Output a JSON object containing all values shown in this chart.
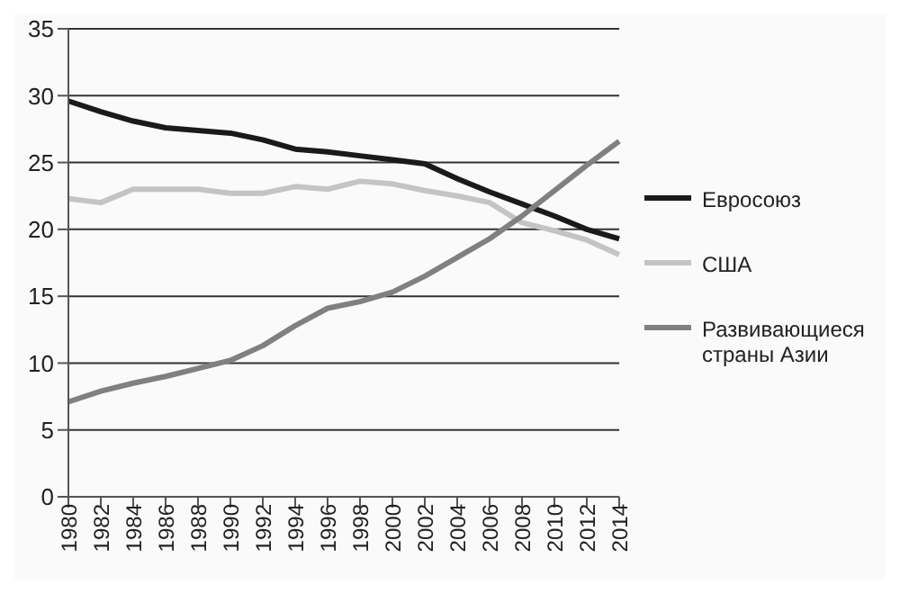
{
  "chart_data": {
    "type": "line",
    "categories": [
      "1980",
      "1982",
      "1984",
      "1986",
      "1988",
      "1990",
      "1992",
      "1994",
      "1996",
      "1998",
      "2000",
      "2002",
      "2004",
      "2006",
      "2008",
      "2010",
      "2012",
      "2014"
    ],
    "series": [
      {
        "name": "Евросоюз",
        "color": "#1a1a1a",
        "values": [
          29.6,
          28.8,
          28.1,
          27.6,
          27.4,
          27.2,
          26.7,
          26.0,
          25.8,
          25.5,
          25.2,
          24.9,
          23.8,
          22.8,
          21.9,
          21.0,
          20.0,
          19.3
        ]
      },
      {
        "name": "США",
        "color": "#c4c4c4",
        "values": [
          22.3,
          22.0,
          23.0,
          23.0,
          23.0,
          22.7,
          22.7,
          23.2,
          23.0,
          23.6,
          23.4,
          22.9,
          22.5,
          22.0,
          20.5,
          19.9,
          19.2,
          18.1
        ]
      },
      {
        "name": "Развивающиеся страны Азии",
        "color": "#808080",
        "values": [
          7.1,
          7.9,
          8.5,
          9.0,
          9.6,
          10.2,
          11.3,
          12.8,
          14.1,
          14.6,
          15.3,
          16.5,
          17.9,
          19.3,
          21.0,
          22.9,
          24.8,
          26.6
        ]
      }
    ],
    "ylim": [
      0,
      35
    ],
    "yticks": [
      0,
      5,
      10,
      15,
      20,
      25,
      30,
      35
    ],
    "grid": "y",
    "legend": "right",
    "marker": "none",
    "line_style": "solid"
  }
}
